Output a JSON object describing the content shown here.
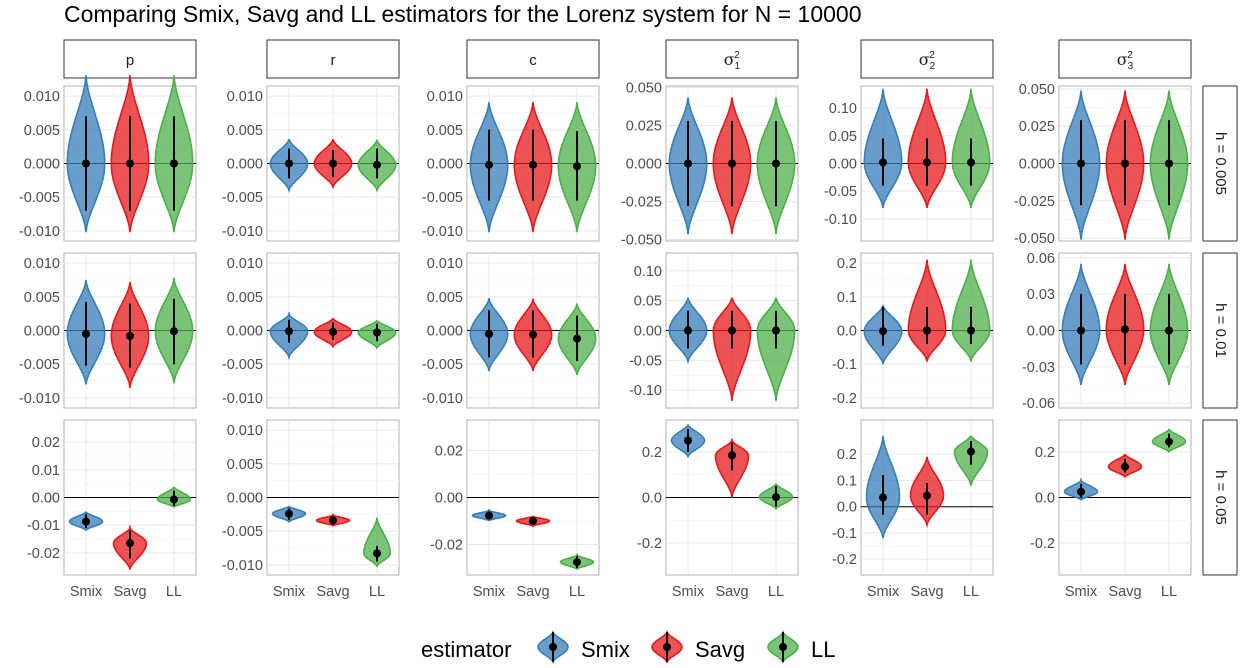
{
  "title": "Comparing Smix, Savg and LL estimators for the Lorenz system for N = 10000",
  "colors": {
    "Smix": "#377eb8",
    "Savg": "#e41a1c",
    "LL": "#4daf4a"
  },
  "legend": {
    "title": "estimator",
    "items": [
      "Smix",
      "Savg",
      "LL"
    ]
  },
  "chart_data": {
    "type": "violin",
    "categories": [
      "Smix",
      "Savg",
      "LL"
    ],
    "columns": [
      {
        "label": "p"
      },
      {
        "label": "r"
      },
      {
        "label": "c"
      },
      {
        "label": "σ",
        "sup": "2",
        "sub": "1"
      },
      {
        "label": "σ",
        "sup": "2",
        "sub": "2"
      },
      {
        "label": "σ",
        "sup": "2",
        "sub": "3"
      }
    ],
    "rows": [
      "h = 0.005",
      "h = 0.01",
      "h = 0.05"
    ],
    "panels": [
      [
        {
          "ylim": [
            -0.0115,
            0.0115
          ],
          "ticks": [
            0.01,
            0.005,
            0.0,
            -0.005,
            -0.01
          ],
          "labels": [
            "0.010",
            "0.005",
            "0.000",
            "-0.005",
            "-0.010"
          ],
          "violins": [
            {
              "median": 0.0,
              "lo": -0.0102,
              "hi": 0.0131,
              "wlo": -0.007,
              "whi": 0.007,
              "width": 0.85
            },
            {
              "median": 0.0,
              "lo": -0.0102,
              "hi": 0.0131,
              "wlo": -0.007,
              "whi": 0.007,
              "width": 0.85
            },
            {
              "median": 0.0,
              "lo": -0.0102,
              "hi": 0.0131,
              "wlo": -0.007,
              "whi": 0.007,
              "width": 0.85
            }
          ]
        },
        {
          "ylim": [
            -0.0115,
            0.0115
          ],
          "ticks": [
            0.01,
            0.005,
            0.0,
            -0.005,
            -0.01
          ],
          "labels": [
            "0.010",
            "0.005",
            "0.000",
            "-0.005",
            "-0.010"
          ],
          "violins": [
            {
              "median": 0.0,
              "lo": -0.004,
              "hi": 0.0036,
              "wlo": -0.0022,
              "whi": 0.0022,
              "width": 0.85
            },
            {
              "median": 0.0,
              "lo": -0.0035,
              "hi": 0.0036,
              "wlo": -0.002,
              "whi": 0.002,
              "width": 0.85
            },
            {
              "median": -0.0002,
              "lo": -0.004,
              "hi": 0.0035,
              "wlo": -0.0022,
              "whi": 0.0022,
              "width": 0.85
            }
          ]
        },
        {
          "ylim": [
            -0.0115,
            0.0115
          ],
          "ticks": [
            0.01,
            0.005,
            0.0,
            -0.005,
            -0.01
          ],
          "labels": [
            "0.010",
            "0.005",
            "0.000",
            "-0.005",
            "-0.010"
          ],
          "violins": [
            {
              "median": -0.0002,
              "lo": -0.0102,
              "hi": 0.0091,
              "wlo": -0.0055,
              "whi": 0.005,
              "width": 0.85
            },
            {
              "median": -0.0002,
              "lo": -0.0102,
              "hi": 0.0091,
              "wlo": -0.0055,
              "whi": 0.005,
              "width": 0.85
            },
            {
              "median": -0.0004,
              "lo": -0.0102,
              "hi": 0.0091,
              "wlo": -0.0055,
              "whi": 0.0048,
              "width": 0.85
            }
          ]
        },
        {
          "ylim": [
            -0.051,
            0.051
          ],
          "ticks": [
            0.05,
            0.025,
            0.0,
            -0.025,
            -0.05
          ],
          "labels": [
            "0.050",
            "0.025",
            "0.000",
            "-0.025",
            "-0.050"
          ],
          "violins": [
            {
              "median": 0.0,
              "lo": -0.0465,
              "hi": 0.0435,
              "wlo": -0.028,
              "whi": 0.028,
              "width": 0.85
            },
            {
              "median": 0.0,
              "lo": -0.0465,
              "hi": 0.0435,
              "wlo": -0.028,
              "whi": 0.028,
              "width": 0.85
            },
            {
              "median": 0.0,
              "lo": -0.0465,
              "hi": 0.0435,
              "wlo": -0.028,
              "whi": 0.028,
              "width": 0.85
            }
          ]
        },
        {
          "ylim": [
            -0.14,
            0.14
          ],
          "ticks": [
            0.1,
            0.05,
            0.0,
            -0.05,
            -0.1
          ],
          "labels": [
            "0.10",
            "0.05",
            "0.00",
            "-0.05",
            "-0.10"
          ],
          "violins": [
            {
              "median": 0.002,
              "lo": -0.08,
              "hi": 0.135,
              "wlo": -0.04,
              "whi": 0.045,
              "width": 0.85
            },
            {
              "median": 0.002,
              "lo": -0.08,
              "hi": 0.135,
              "wlo": -0.04,
              "whi": 0.045,
              "width": 0.85
            },
            {
              "median": 0.002,
              "lo": -0.08,
              "hi": 0.135,
              "wlo": -0.04,
              "whi": 0.045,
              "width": 0.85
            }
          ]
        },
        {
          "ylim": [
            -0.052,
            0.052
          ],
          "ticks": [
            0.05,
            0.025,
            0.0,
            -0.025,
            -0.05
          ],
          "labels": [
            "0.050",
            "0.025",
            "0.000",
            "-0.025",
            "-0.050"
          ],
          "violins": [
            {
              "median": 0.0,
              "lo": -0.051,
              "hi": 0.049,
              "wlo": -0.028,
              "whi": 0.029,
              "width": 0.85
            },
            {
              "median": 0.0,
              "lo": -0.051,
              "hi": 0.049,
              "wlo": -0.028,
              "whi": 0.029,
              "width": 0.85
            },
            {
              "median": 0.0,
              "lo": -0.051,
              "hi": 0.049,
              "wlo": -0.028,
              "whi": 0.029,
              "width": 0.85
            }
          ]
        }
      ],
      [
        {
          "ylim": [
            -0.0115,
            0.0115
          ],
          "ticks": [
            0.01,
            0.005,
            0.0,
            -0.005,
            -0.01
          ],
          "labels": [
            "0.010",
            "0.005",
            "0.000",
            "-0.005",
            "-0.010"
          ],
          "violins": [
            {
              "median": -0.0005,
              "lo": -0.008,
              "hi": 0.0075,
              "wlo": -0.0052,
              "whi": 0.0042,
              "width": 0.85
            },
            {
              "median": -0.0008,
              "lo": -0.0085,
              "hi": 0.0072,
              "wlo": -0.0055,
              "whi": 0.004,
              "width": 0.85
            },
            {
              "median": -0.0001,
              "lo": -0.0078,
              "hi": 0.0078,
              "wlo": -0.005,
              "whi": 0.0047,
              "width": 0.85
            }
          ]
        },
        {
          "ylim": [
            -0.0115,
            0.0115
          ],
          "ticks": [
            0.01,
            0.005,
            0.0,
            -0.005,
            -0.01
          ],
          "labels": [
            "0.010",
            "0.005",
            "0.000",
            "-0.005",
            "-0.010"
          ],
          "violins": [
            {
              "median": -0.0001,
              "lo": -0.004,
              "hi": 0.0024,
              "wlo": -0.0018,
              "whi": 0.0016,
              "width": 0.85
            },
            {
              "median": -0.0002,
              "lo": -0.0024,
              "hi": 0.0018,
              "wlo": -0.0014,
              "whi": 0.0012,
              "width": 0.85
            },
            {
              "median": -0.0003,
              "lo": -0.0026,
              "hi": 0.0015,
              "wlo": -0.0016,
              "whi": 0.001,
              "width": 0.85
            }
          ]
        },
        {
          "ylim": [
            -0.0115,
            0.0115
          ],
          "ticks": [
            0.01,
            0.005,
            0.0,
            -0.005,
            -0.01
          ],
          "labels": [
            "0.010",
            "0.005",
            "0.000",
            "-0.005",
            "-0.010"
          ],
          "violins": [
            {
              "median": -0.0005,
              "lo": -0.006,
              "hi": 0.0048,
              "wlo": -0.004,
              "whi": 0.003,
              "width": 0.85
            },
            {
              "median": -0.0006,
              "lo": -0.006,
              "hi": 0.0047,
              "wlo": -0.004,
              "whi": 0.003,
              "width": 0.85
            },
            {
              "median": -0.0012,
              "lo": -0.0066,
              "hi": 0.004,
              "wlo": -0.0045,
              "whi": 0.0022,
              "width": 0.85
            }
          ]
        },
        {
          "ylim": [
            -0.13,
            0.13
          ],
          "ticks": [
            0.1,
            0.05,
            0.0,
            -0.05,
            -0.1
          ],
          "labels": [
            "0.10",
            "0.05",
            "0.00",
            "-0.05",
            "-0.10"
          ],
          "violins": [
            {
              "median": 0.0,
              "lo": -0.052,
              "hi": 0.055,
              "wlo": -0.03,
              "whi": 0.033,
              "width": 0.85
            },
            {
              "median": 0.0,
              "lo": -0.118,
              "hi": 0.055,
              "wlo": -0.03,
              "whi": 0.033,
              "width": 0.85
            },
            {
              "median": 0.0,
              "lo": -0.118,
              "hi": 0.055,
              "wlo": -0.03,
              "whi": 0.033,
              "width": 0.85
            }
          ]
        },
        {
          "ylim": [
            -0.23,
            0.23
          ],
          "ticks": [
            0.2,
            0.1,
            0.0,
            -0.1,
            -0.2
          ],
          "labels": [
            "0.2",
            "0.1",
            "0.0",
            "-0.1",
            "-0.2"
          ],
          "violins": [
            {
              "median": -0.002,
              "lo": -0.1,
              "hi": 0.075,
              "wlo": -0.045,
              "whi": 0.07,
              "width": 0.85
            },
            {
              "median": 0.0,
              "lo": -0.09,
              "hi": 0.21,
              "wlo": -0.04,
              "whi": 0.07,
              "width": 0.85
            },
            {
              "median": 0.0,
              "lo": -0.09,
              "hi": 0.21,
              "wlo": -0.04,
              "whi": 0.07,
              "width": 0.85
            }
          ]
        },
        {
          "ylim": [
            -0.064,
            0.064
          ],
          "ticks": [
            0.06,
            0.03,
            0.0,
            -0.03,
            -0.06
          ],
          "labels": [
            "0.06",
            "0.03",
            "0.00",
            "-0.03",
            "-0.06"
          ],
          "violins": [
            {
              "median": 0.0,
              "lo": -0.045,
              "hi": 0.055,
              "wlo": -0.028,
              "whi": 0.03,
              "width": 0.85
            },
            {
              "median": 0.001,
              "lo": -0.045,
              "hi": 0.055,
              "wlo": -0.028,
              "whi": 0.03,
              "width": 0.85
            },
            {
              "median": 0.0,
              "lo": -0.045,
              "hi": 0.055,
              "wlo": -0.028,
              "whi": 0.03,
              "width": 0.85
            }
          ]
        }
      ],
      [
        {
          "ylim": [
            -0.028,
            0.028
          ],
          "ticks": [
            0.02,
            0.01,
            0.0,
            -0.01,
            -0.02
          ],
          "labels": [
            "0.02",
            "0.01",
            "0.00",
            "-0.01",
            "-0.02"
          ],
          "violins": [
            {
              "median": -0.0087,
              "lo": -0.0118,
              "hi": -0.0052,
              "wlo": -0.011,
              "whi": -0.006,
              "width": 0.75
            },
            {
              "median": -0.0165,
              "lo": -0.026,
              "hi": -0.011,
              "wlo": -0.022,
              "whi": -0.012,
              "width": 0.75
            },
            {
              "median": -0.0007,
              "lo": -0.0035,
              "hi": 0.0038,
              "wlo": -0.003,
              "whi": 0.0025,
              "width": 0.75
            }
          ]
        },
        {
          "ylim": [
            -0.0115,
            0.0115
          ],
          "ticks": [
            0.01,
            0.005,
            0.0,
            -0.005,
            -0.01
          ],
          "labels": [
            "0.010",
            "0.005",
            "0.000",
            "-0.005",
            "-0.010"
          ],
          "violins": [
            {
              "median": -0.0024,
              "lo": -0.0036,
              "hi": -0.0013,
              "wlo": -0.0033,
              "whi": -0.0016,
              "width": 0.75
            },
            {
              "median": -0.0034,
              "lo": -0.0042,
              "hi": -0.0026,
              "wlo": -0.004,
              "whi": -0.0028,
              "width": 0.75
            },
            {
              "median": -0.0083,
              "lo": -0.0102,
              "hi": -0.003,
              "wlo": -0.0095,
              "whi": -0.0072,
              "width": 0.6
            }
          ]
        },
        {
          "ylim": [
            -0.033,
            0.033
          ],
          "ticks": [
            0.02,
            0.0,
            -0.02
          ],
          "labels": [
            "0.02",
            "0.00",
            "-0.02"
          ],
          "violins": [
            {
              "median": -0.0077,
              "lo": -0.0098,
              "hi": -0.0055,
              "wlo": -0.0092,
              "whi": -0.006,
              "width": 0.75
            },
            {
              "median": -0.01,
              "lo": -0.0122,
              "hi": -0.008,
              "wlo": -0.0115,
              "whi": -0.0085,
              "width": 0.75
            },
            {
              "median": -0.0275,
              "lo": -0.0305,
              "hi": -0.0245,
              "wlo": -0.03,
              "whi": -0.025,
              "width": 0.75
            }
          ]
        },
        {
          "ylim": [
            -0.34,
            0.34
          ],
          "ticks": [
            0.2,
            0.0,
            -0.2
          ],
          "labels": [
            "0.2",
            "0.0",
            "-0.2"
          ],
          "violins": [
            {
              "median": 0.25,
              "lo": 0.18,
              "hi": 0.32,
              "wlo": 0.2,
              "whi": 0.3,
              "width": 0.75
            },
            {
              "median": 0.185,
              "lo": 0.0,
              "hi": 0.25,
              "wlo": 0.12,
              "whi": 0.24,
              "width": 0.75
            },
            {
              "median": 0.002,
              "lo": -0.05,
              "hi": 0.06,
              "wlo": -0.04,
              "whi": 0.05,
              "width": 0.75
            }
          ]
        },
        {
          "ylim": [
            -0.26,
            0.33
          ],
          "ticks": [
            0.2,
            0.1,
            0.0,
            -0.1,
            -0.2
          ],
          "labels": [
            "0.2",
            "0.1",
            "0.0",
            "-0.1",
            "-0.2"
          ],
          "violins": [
            {
              "median": 0.035,
              "lo": -0.12,
              "hi": 0.27,
              "wlo": -0.03,
              "whi": 0.12,
              "width": 0.75
            },
            {
              "median": 0.042,
              "lo": -0.07,
              "hi": 0.19,
              "wlo": -0.03,
              "whi": 0.09,
              "width": 0.75
            },
            {
              "median": 0.21,
              "lo": 0.08,
              "hi": 0.27,
              "wlo": 0.16,
              "whi": 0.25,
              "width": 0.75
            }
          ]
        },
        {
          "ylim": [
            -0.34,
            0.34
          ],
          "ticks": [
            0.2,
            0.0,
            -0.2
          ],
          "labels": [
            "0.2",
            "0.0",
            "-0.2"
          ],
          "violins": [
            {
              "median": 0.025,
              "lo": -0.01,
              "hi": 0.075,
              "wlo": 0.0,
              "whi": 0.06,
              "width": 0.75
            },
            {
              "median": 0.135,
              "lo": 0.09,
              "hi": 0.19,
              "wlo": 0.11,
              "whi": 0.17,
              "width": 0.75
            },
            {
              "median": 0.245,
              "lo": 0.2,
              "hi": 0.3,
              "wlo": 0.22,
              "whi": 0.28,
              "width": 0.75
            }
          ]
        }
      ]
    ]
  }
}
